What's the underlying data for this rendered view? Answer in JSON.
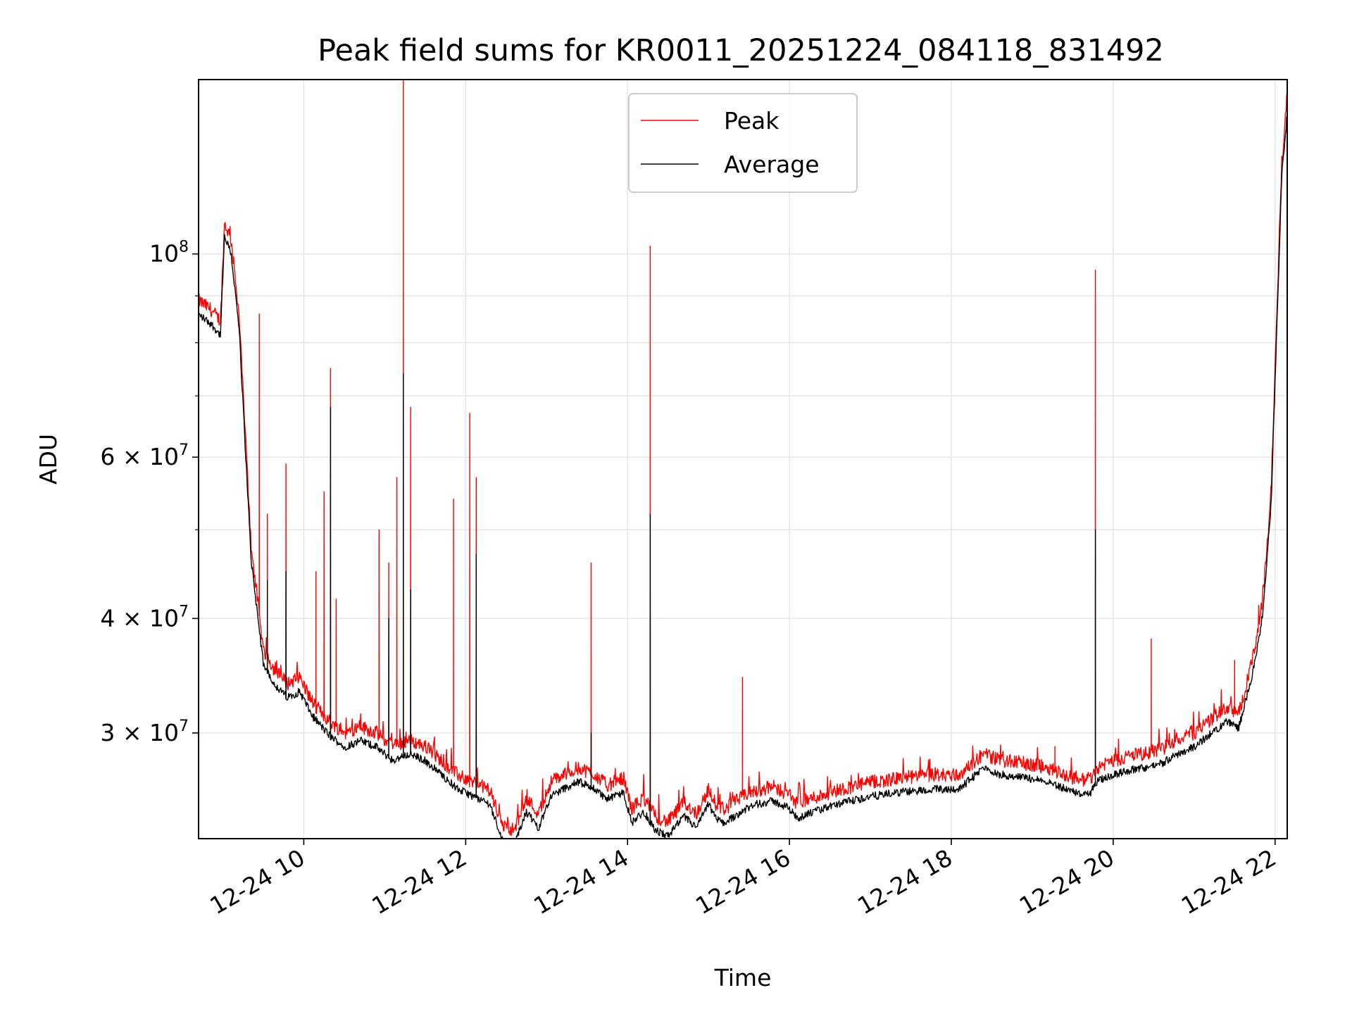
{
  "chart_data": {
    "type": "line",
    "title": "Peak field sums for KR0011_20251224_084118_831492",
    "xlabel": "Time",
    "ylabel": "ADU",
    "yscale": "log",
    "ylim": [
      23000000,
      155000000
    ],
    "xlim_hours": [
      8.7,
      22.15
    ],
    "grid": true,
    "legend_position": "top-center",
    "x_ticks": [
      {
        "hour": 10,
        "label": "12-24 10"
      },
      {
        "hour": 12,
        "label": "12-24 12"
      },
      {
        "hour": 14,
        "label": "12-24 14"
      },
      {
        "hour": 16,
        "label": "12-24 16"
      },
      {
        "hour": 18,
        "label": "12-24 18"
      },
      {
        "hour": 20,
        "label": "12-24 20"
      },
      {
        "hour": 22,
        "label": "12-24 22"
      }
    ],
    "y_ticks": [
      {
        "value": 30000000,
        "mantissa": "3",
        "times": "×",
        "base": "10",
        "exp": "7"
      },
      {
        "value": 40000000,
        "mantissa": "4",
        "times": "×",
        "base": "10",
        "exp": "7"
      },
      {
        "value": 60000000,
        "mantissa": "6",
        "times": "×",
        "base": "10",
        "exp": "7"
      },
      {
        "value": 100000000,
        "mantissa": "",
        "times": "",
        "base": "10",
        "exp": "8"
      }
    ],
    "minor_y_ticks": [
      50000000,
      70000000,
      80000000,
      90000000
    ],
    "series": [
      {
        "name": "Peak",
        "color": "#ff0000",
        "baseline": [
          [
            8.7,
            89000000
          ],
          [
            8.85,
            87000000
          ],
          [
            8.97,
            84500000
          ],
          [
            9.02,
            108000000
          ],
          [
            9.1,
            104000000
          ],
          [
            9.2,
            86000000
          ],
          [
            9.35,
            48000000
          ],
          [
            9.5,
            37000000
          ],
          [
            9.65,
            35000000
          ],
          [
            9.8,
            34000000
          ],
          [
            9.95,
            34500000
          ],
          [
            10.1,
            32500000
          ],
          [
            10.3,
            31000000
          ],
          [
            10.5,
            30000000
          ],
          [
            10.7,
            30500000
          ],
          [
            10.9,
            30000000
          ],
          [
            11.1,
            29000000
          ],
          [
            11.3,
            29500000
          ],
          [
            11.5,
            29000000
          ],
          [
            11.7,
            28000000
          ],
          [
            11.9,
            27000000
          ],
          [
            12.1,
            26500000
          ],
          [
            12.3,
            26000000
          ],
          [
            12.45,
            23800000
          ],
          [
            12.6,
            23500000
          ],
          [
            12.75,
            25500000
          ],
          [
            12.9,
            24500000
          ],
          [
            13.05,
            26500000
          ],
          [
            13.2,
            27000000
          ],
          [
            13.4,
            27500000
          ],
          [
            13.6,
            27000000
          ],
          [
            13.75,
            26300000
          ],
          [
            13.95,
            26800000
          ],
          [
            14.05,
            24800000
          ],
          [
            14.2,
            25500000
          ],
          [
            14.35,
            24300000
          ],
          [
            14.5,
            24000000
          ],
          [
            14.7,
            25200000
          ],
          [
            14.85,
            24500000
          ],
          [
            15.0,
            26000000
          ],
          [
            15.1,
            25000000
          ],
          [
            15.2,
            24800000
          ],
          [
            15.4,
            25500000
          ],
          [
            15.6,
            26000000
          ],
          [
            15.8,
            26200000
          ],
          [
            16.0,
            25700000
          ],
          [
            16.1,
            25100000
          ],
          [
            16.3,
            25500000
          ],
          [
            16.6,
            26000000
          ],
          [
            17.0,
            26500000
          ],
          [
            17.4,
            26800000
          ],
          [
            17.8,
            27000000
          ],
          [
            18.1,
            27000000
          ],
          [
            18.4,
            28500000
          ],
          [
            18.6,
            28000000
          ],
          [
            18.9,
            27800000
          ],
          [
            19.2,
            27500000
          ],
          [
            19.5,
            26800000
          ],
          [
            19.7,
            26600000
          ],
          [
            19.8,
            27500000
          ],
          [
            20.0,
            28000000
          ],
          [
            20.2,
            28300000
          ],
          [
            20.4,
            28500000
          ],
          [
            20.6,
            28800000
          ],
          [
            20.8,
            29500000
          ],
          [
            21.0,
            30000000
          ],
          [
            21.2,
            31000000
          ],
          [
            21.4,
            32000000
          ],
          [
            21.55,
            31500000
          ],
          [
            21.65,
            34000000
          ],
          [
            21.75,
            37000000
          ],
          [
            21.85,
            42000000
          ],
          [
            21.95,
            55000000
          ],
          [
            22.02,
            85000000
          ],
          [
            22.08,
            125000000
          ],
          [
            22.15,
            148000000
          ]
        ],
        "spikes": [
          [
            9.45,
            86000000
          ],
          [
            9.55,
            52000000
          ],
          [
            9.78,
            59000000
          ],
          [
            10.15,
            45000000
          ],
          [
            10.25,
            55000000
          ],
          [
            10.33,
            75000000
          ],
          [
            10.4,
            42000000
          ],
          [
            10.93,
            50000000
          ],
          [
            11.05,
            46000000
          ],
          [
            11.15,
            57000000
          ],
          [
            11.23,
            155000000
          ],
          [
            11.32,
            68000000
          ],
          [
            11.85,
            54000000
          ],
          [
            12.05,
            67000000
          ],
          [
            12.13,
            57000000
          ],
          [
            13.55,
            46000000
          ],
          [
            14.28,
            102000000
          ],
          [
            15.42,
            34500000
          ],
          [
            19.28,
            29000000
          ],
          [
            19.78,
            96000000
          ],
          [
            20.47,
            38000000
          ],
          [
            21.5,
            36000000
          ]
        ]
      },
      {
        "name": "Average",
        "color": "#000000",
        "ratio": 0.965,
        "spikes": [
          [
            9.55,
            44000000
          ],
          [
            9.78,
            45000000
          ],
          [
            10.33,
            68000000
          ],
          [
            11.05,
            40000000
          ],
          [
            11.23,
            74000000
          ],
          [
            11.32,
            43000000
          ],
          [
            12.13,
            47000000
          ],
          [
            13.55,
            30000000
          ],
          [
            14.28,
            52000000
          ],
          [
            19.78,
            50000000
          ]
        ]
      }
    ]
  }
}
